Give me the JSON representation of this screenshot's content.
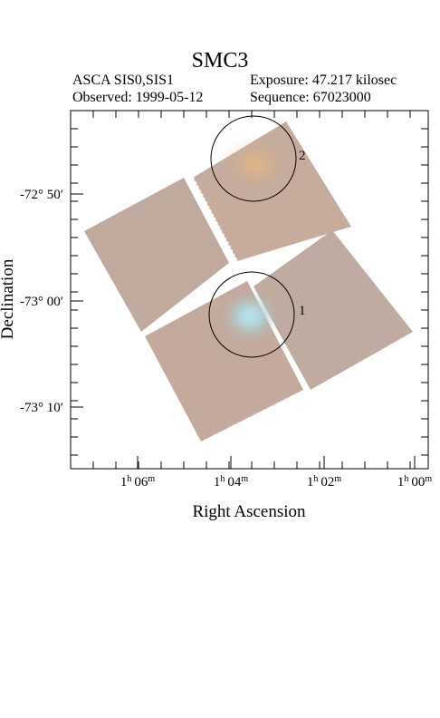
{
  "title": "SMC3",
  "header": {
    "instrument": "ASCA SIS0,SIS1",
    "exposure": "Exposure: 47.217 kilosec",
    "observed": "Observed: 1999-05-12",
    "sequence": "Sequence: 67023000"
  },
  "chart_data": {
    "type": "scatter",
    "title": "SMC3",
    "xlabel": "Right Ascension",
    "ylabel": "Declination",
    "x_ticks": [
      {
        "h": "1",
        "m": "06"
      },
      {
        "h": "1",
        "m": "04"
      },
      {
        "h": "1",
        "m": "02"
      },
      {
        "h": "1",
        "m": "00"
      }
    ],
    "y_ticks": [
      "-72° 50′",
      "-73° 00′",
      "-73° 10′"
    ],
    "sources": [
      {
        "label": "1",
        "ra": "1h 03.5m",
        "dec": "-73° 01.3′"
      },
      {
        "label": "2",
        "ra": "1h 03.5m",
        "dec": "-72° 47.0′"
      }
    ],
    "grid": false
  }
}
